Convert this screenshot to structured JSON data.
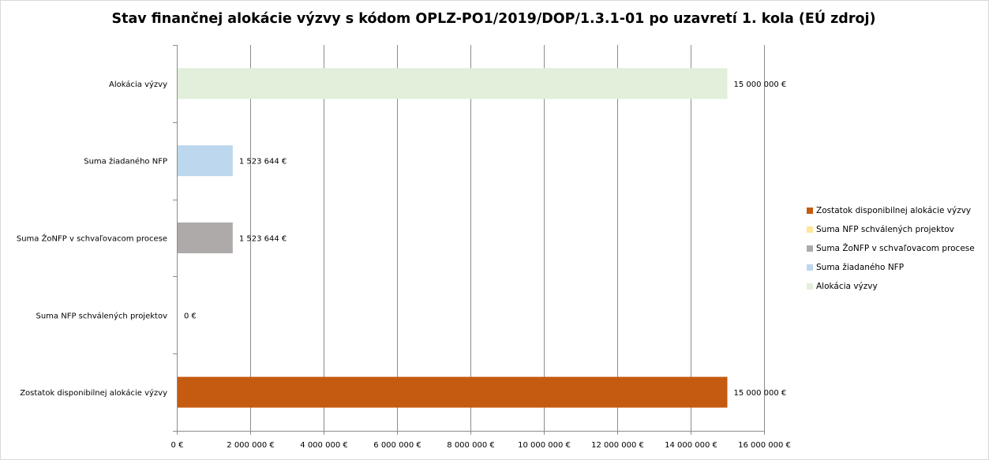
{
  "chart_data": {
    "type": "bar",
    "orientation": "horizontal",
    "title": "Stav finančnej alokácie výzvy s kódom OPLZ-PO1/2019/DOP/1.3.1-01 po uzavretí 1. kola (EÚ zdroj)",
    "categories": [
      "Alokácia výzvy",
      "Suma žiadaného NFP",
      "Suma ŽoNFP v schvaľovacom procese",
      "Suma NFP schválených projektov",
      "Zostatok disponibilnej alokácie výzvy"
    ],
    "values": [
      15000000,
      1523644,
      1523644,
      0,
      15000000
    ],
    "data_labels": [
      "15 000 000 €",
      "1 523 644 €",
      "1 523 644 €",
      "0 €",
      "15 000 000 €"
    ],
    "colors": [
      "#e2efda",
      "#bdd7ee",
      "#aeaaaa",
      "#ffe699",
      "#c55a11"
    ],
    "xlim": [
      0,
      16000000
    ],
    "x_ticks": [
      0,
      2000000,
      4000000,
      6000000,
      8000000,
      10000000,
      12000000,
      14000000,
      16000000
    ],
    "x_tick_labels": [
      "0 €",
      "2 000 000 €",
      "4 000 000 €",
      "6 000 000 €",
      "8 000 000 €",
      "10 000 000 €",
      "12 000 000 €",
      "14 000 000 €",
      "16 000 000 €"
    ],
    "grid": "vertical",
    "legend_position": "right",
    "legend": [
      {
        "label": "Zostatok disponibilnej alokácie výzvy",
        "color": "#c55a11"
      },
      {
        "label": "Suma NFP schválených projektov",
        "color": "#ffe699"
      },
      {
        "label": "Suma ŽoNFP v schvaľovacom procese",
        "color": "#aeaaaa"
      },
      {
        "label": "Suma žiadaného NFP",
        "color": "#bdd7ee"
      },
      {
        "label": "Alokácia výzvy",
        "color": "#e2efda"
      }
    ],
    "xlabel": "",
    "ylabel": ""
  }
}
